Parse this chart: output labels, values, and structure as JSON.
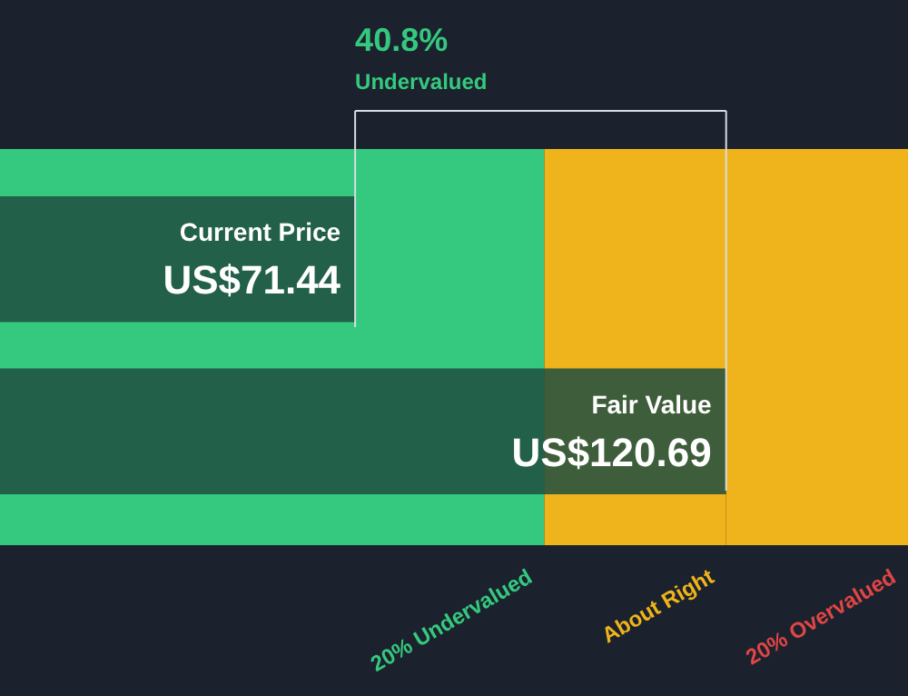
{
  "chart_data": {
    "type": "bar",
    "orientation": "horizontal",
    "categories": [
      "Current Price",
      "Fair Value"
    ],
    "values": [
      71.44,
      120.69
    ],
    "colors": [
      "#1f4d40",
      "#1f4d40"
    ],
    "value_labels": [
      "US$71.44",
      "US$120.69"
    ],
    "xlim": [
      24.3,
      144.83
    ],
    "bands": [
      {
        "axis": "x",
        "from": 24.3,
        "to": 96.55,
        "color": "#35c97f",
        "label": "20% Undervalued"
      },
      {
        "axis": "x",
        "from": 96.55,
        "to": 120.69,
        "color": "#efb31b",
        "label": "About Right"
      },
      {
        "axis": "x",
        "from": 120.69,
        "to": 144.83,
        "color": "#efb31b",
        "label": "20% Overvalued"
      }
    ],
    "ref_lines": [
      {
        "axis": "x",
        "value": 71.44,
        "color": "#d8dde3"
      },
      {
        "axis": "x",
        "value": 120.69,
        "color": "#d8dde3"
      }
    ],
    "annotations": [
      "40.8%",
      "Undervalued"
    ]
  }
}
